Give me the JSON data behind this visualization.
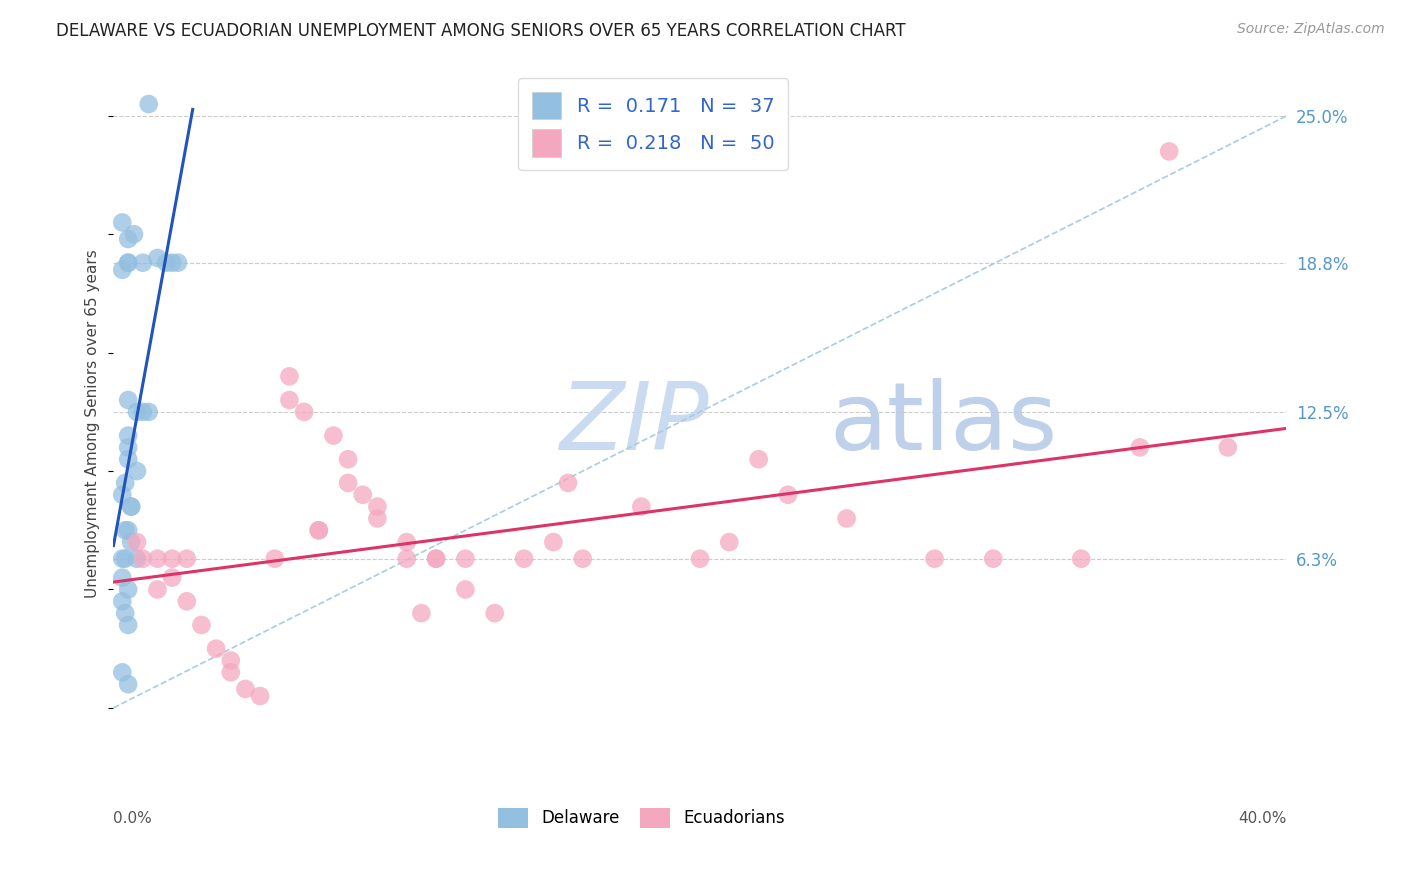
{
  "title": "DELAWARE VS ECUADORIAN UNEMPLOYMENT AMONG SENIORS OVER 65 YEARS CORRELATION CHART",
  "source": "Source: ZipAtlas.com",
  "ylabel": "Unemployment Among Seniors over 65 years",
  "xlim": [
    0,
    40
  ],
  "ylim": [
    -3,
    27
  ],
  "ytick_positions": [
    6.3,
    12.5,
    18.8,
    25.0
  ],
  "ytick_labels": [
    "6.3%",
    "12.5%",
    "18.8%",
    "25.0%"
  ],
  "grid_color": "#cccccc",
  "background_color": "#ffffff",
  "watermark_zip": "ZIP",
  "watermark_atlas": "atlas",
  "watermark_color_zip": "#c5d8f0",
  "watermark_color_atlas": "#b8cce8",
  "delaware_scatter_color": "#93bfe0",
  "ecuadorian_scatter_color": "#f4a8c0",
  "delaware_line_color": "#2255bb",
  "ecuadorian_line_color": "#dd3366",
  "dashed_line_color": "#aaccdd",
  "R_delaware": 0.171,
  "N_delaware": 37,
  "R_ecuadorian": 0.218,
  "N_ecuadorian": 50,
  "delaware_x": [
    1.2,
    0.3,
    0.7,
    0.5,
    0.5,
    0.3,
    0.5,
    1.0,
    1.8,
    1.5,
    2.2,
    2.0,
    0.5,
    0.8,
    1.0,
    1.2,
    0.5,
    0.5,
    0.5,
    0.8,
    0.3,
    0.4,
    0.6,
    0.6,
    0.4,
    0.5,
    0.6,
    0.8,
    0.4,
    0.3,
    0.3,
    0.3,
    0.4,
    0.5,
    0.5,
    0.3,
    0.5
  ],
  "delaware_y": [
    25.5,
    20.5,
    20.0,
    19.8,
    18.8,
    18.5,
    18.8,
    18.8,
    18.8,
    19.0,
    18.8,
    18.8,
    13.0,
    12.5,
    12.5,
    12.5,
    11.5,
    11.0,
    10.5,
    10.0,
    9.0,
    9.5,
    8.5,
    8.5,
    7.5,
    7.5,
    7.0,
    6.3,
    6.3,
    6.3,
    5.5,
    4.5,
    4.0,
    5.0,
    3.5,
    1.5,
    1.0
  ],
  "ecuadorian_x": [
    0.8,
    1.0,
    1.5,
    1.5,
    2.0,
    2.0,
    2.5,
    2.5,
    3.0,
    3.5,
    4.0,
    4.0,
    4.5,
    5.0,
    5.5,
    6.0,
    6.0,
    6.5,
    7.0,
    7.0,
    7.5,
    8.0,
    8.0,
    8.5,
    9.0,
    9.0,
    10.0,
    10.0,
    10.5,
    11.0,
    11.0,
    12.0,
    12.0,
    13.0,
    14.0,
    15.0,
    15.5,
    16.0,
    18.0,
    20.0,
    21.0,
    22.0,
    23.0,
    25.0,
    28.0,
    30.0,
    33.0,
    35.0,
    36.0,
    38.0
  ],
  "ecuadorian_y": [
    7.0,
    6.3,
    6.3,
    5.0,
    6.3,
    5.5,
    4.5,
    6.3,
    3.5,
    2.5,
    2.0,
    1.5,
    0.8,
    0.5,
    6.3,
    14.0,
    13.0,
    12.5,
    7.5,
    7.5,
    11.5,
    9.5,
    10.5,
    9.0,
    8.5,
    8.0,
    7.0,
    6.3,
    4.0,
    6.3,
    6.3,
    6.3,
    5.0,
    4.0,
    6.3,
    7.0,
    9.5,
    6.3,
    8.5,
    6.3,
    7.0,
    10.5,
    9.0,
    8.0,
    6.3,
    6.3,
    6.3,
    11.0,
    23.5,
    11.0
  ],
  "legend_labels_bottom": [
    "Delaware",
    "Ecuadorians"
  ],
  "title_fontsize": 12,
  "source_fontsize": 10,
  "tick_fontsize": 12,
  "scatter_size": 180,
  "scatter_alpha": 0.75
}
